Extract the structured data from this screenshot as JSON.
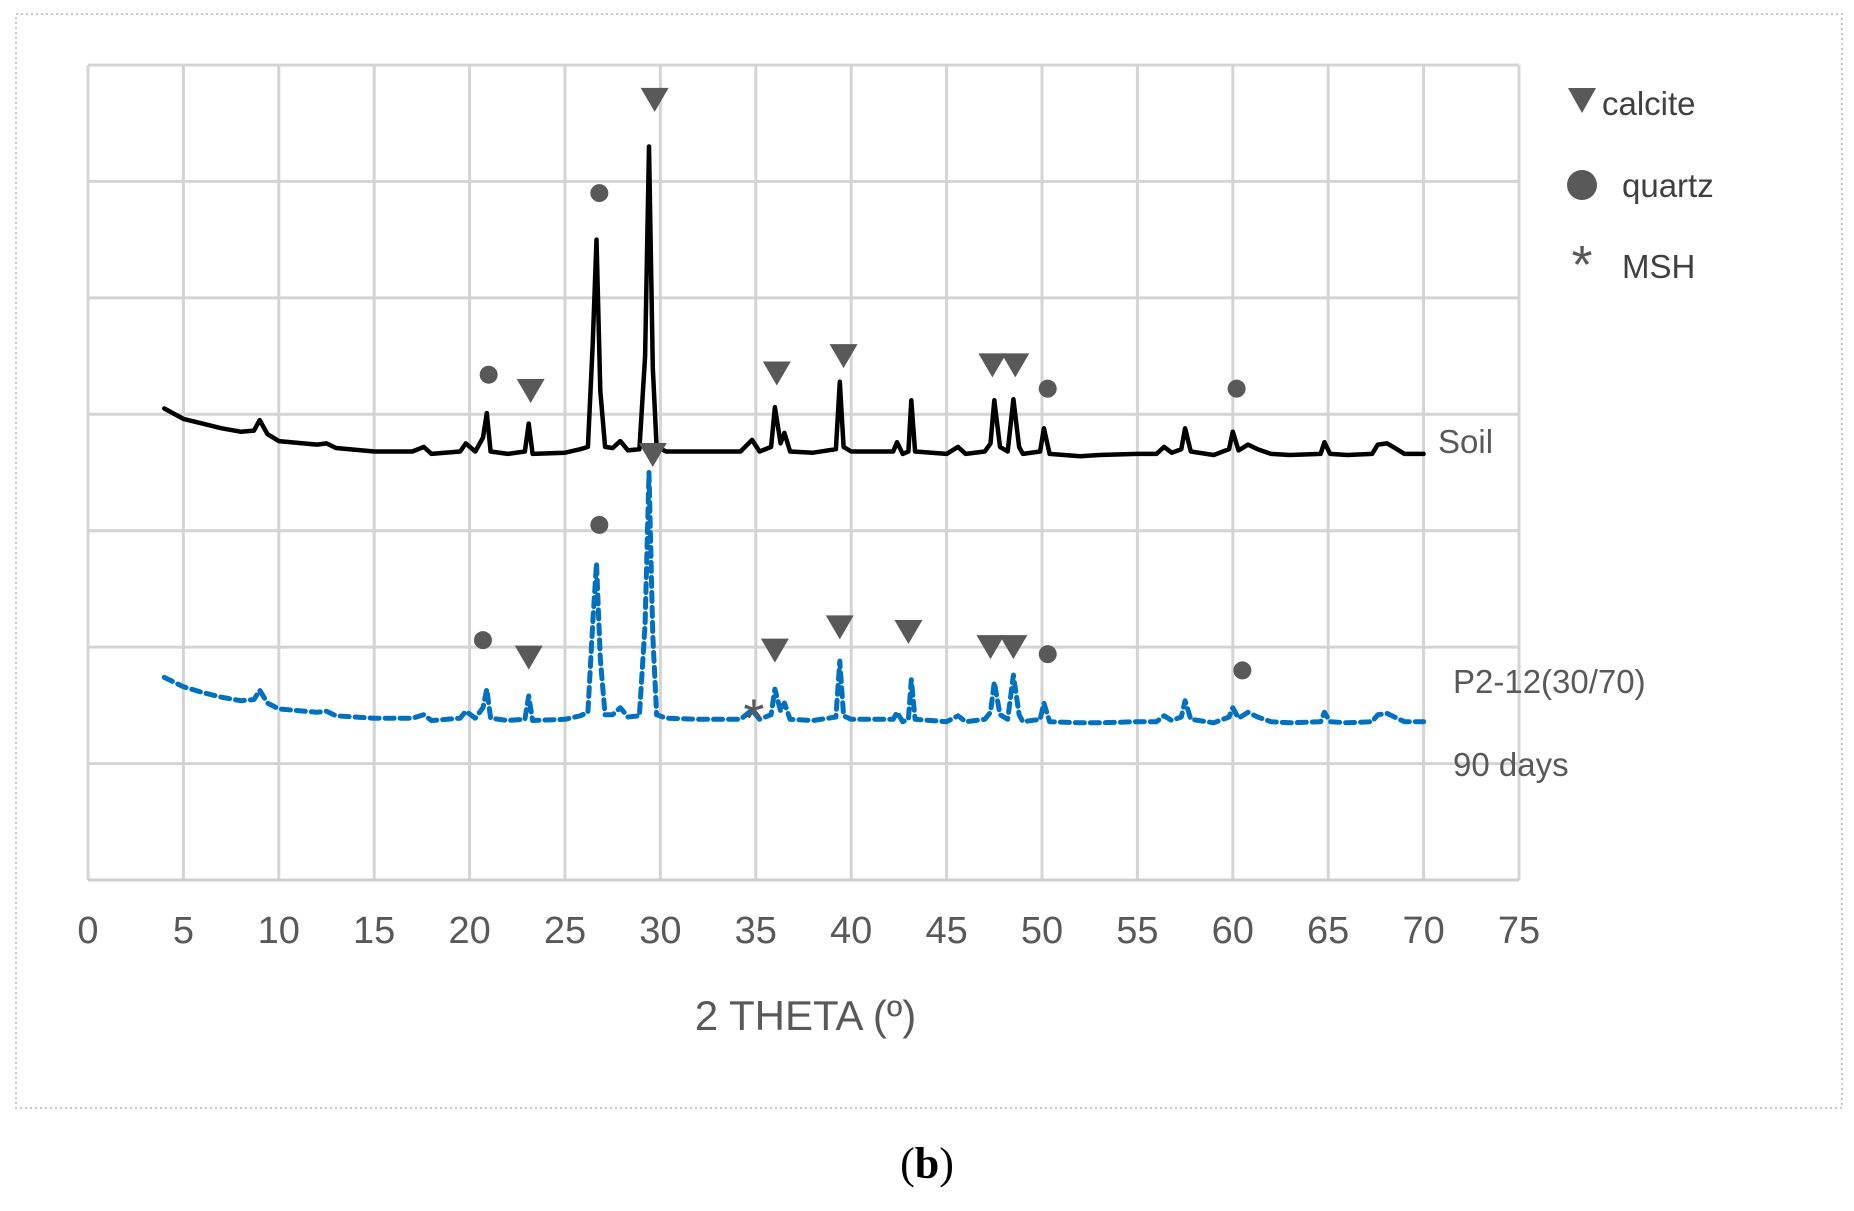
{
  "chart_data": {
    "type": "line",
    "xlabel": "2 THETA (º)",
    "ylabel": "",
    "xlim": [
      0,
      75
    ],
    "ylim": [
      0,
      7
    ],
    "x_ticks": [
      "0",
      "5",
      "10",
      "15",
      "20",
      "25",
      "30",
      "35",
      "40",
      "45",
      "50",
      "55",
      "60",
      "65",
      "70",
      "75"
    ],
    "y_tick_labels_shown": false,
    "grid": true,
    "series": [
      {
        "name": "Soil",
        "color": "#000000",
        "style": "solid",
        "points": [
          [
            4,
            4.05
          ],
          [
            5,
            3.96
          ],
          [
            6,
            3.92
          ],
          [
            7,
            3.88
          ],
          [
            8,
            3.85
          ],
          [
            8.7,
            3.86
          ],
          [
            9,
            3.95
          ],
          [
            9.4,
            3.83
          ],
          [
            10,
            3.77
          ],
          [
            12,
            3.74
          ],
          [
            12.5,
            3.75
          ],
          [
            13,
            3.71
          ],
          [
            15,
            3.68
          ],
          [
            17,
            3.68
          ],
          [
            17.6,
            3.72
          ],
          [
            18,
            3.66
          ],
          [
            19.5,
            3.68
          ],
          [
            19.8,
            3.75
          ],
          [
            20.3,
            3.68
          ],
          [
            20.7,
            3.8
          ],
          [
            20.9,
            4.01
          ],
          [
            21.1,
            3.68
          ],
          [
            22,
            3.66
          ],
          [
            22.9,
            3.68
          ],
          [
            23.1,
            3.92
          ],
          [
            23.3,
            3.66
          ],
          [
            25,
            3.67
          ],
          [
            25.8,
            3.7
          ],
          [
            26.2,
            3.72
          ],
          [
            26.45,
            4.6
          ],
          [
            26.65,
            5.5
          ],
          [
            26.85,
            4.2
          ],
          [
            27.1,
            3.72
          ],
          [
            27.5,
            3.71
          ],
          [
            27.9,
            3.77
          ],
          [
            28.3,
            3.69
          ],
          [
            28.9,
            3.7
          ],
          [
            29.2,
            4.5
          ],
          [
            29.4,
            6.3
          ],
          [
            29.6,
            4.4
          ],
          [
            29.8,
            3.72
          ],
          [
            30.3,
            3.68
          ],
          [
            32,
            3.68
          ],
          [
            34.2,
            3.68
          ],
          [
            34.8,
            3.78
          ],
          [
            35.2,
            3.68
          ],
          [
            35.8,
            3.72
          ],
          [
            36,
            4.06
          ],
          [
            36.3,
            3.75
          ],
          [
            36.5,
            3.84
          ],
          [
            36.8,
            3.68
          ],
          [
            38,
            3.67
          ],
          [
            39.2,
            3.7
          ],
          [
            39.4,
            4.28
          ],
          [
            39.6,
            3.72
          ],
          [
            40,
            3.68
          ],
          [
            42.2,
            3.68
          ],
          [
            42.4,
            3.76
          ],
          [
            42.7,
            3.66
          ],
          [
            43,
            3.68
          ],
          [
            43.15,
            4.12
          ],
          [
            43.35,
            3.68
          ],
          [
            45,
            3.66
          ],
          [
            45.6,
            3.72
          ],
          [
            46,
            3.66
          ],
          [
            47,
            3.68
          ],
          [
            47.3,
            3.75
          ],
          [
            47.5,
            4.12
          ],
          [
            47.8,
            3.72
          ],
          [
            48.2,
            3.68
          ],
          [
            48.5,
            4.13
          ],
          [
            48.8,
            3.72
          ],
          [
            49,
            3.66
          ],
          [
            49.9,
            3.68
          ],
          [
            50.1,
            3.88
          ],
          [
            50.4,
            3.66
          ],
          [
            52,
            3.64
          ],
          [
            53,
            3.65
          ],
          [
            55,
            3.66
          ],
          [
            56,
            3.66
          ],
          [
            56.4,
            3.72
          ],
          [
            56.8,
            3.67
          ],
          [
            57.3,
            3.7
          ],
          [
            57.5,
            3.88
          ],
          [
            57.8,
            3.68
          ],
          [
            59,
            3.65
          ],
          [
            59.8,
            3.7
          ],
          [
            60,
            3.85
          ],
          [
            60.3,
            3.69
          ],
          [
            60.8,
            3.74
          ],
          [
            61.3,
            3.7
          ],
          [
            62,
            3.66
          ],
          [
            63,
            3.65
          ],
          [
            64.6,
            3.66
          ],
          [
            64.8,
            3.76
          ],
          [
            65.1,
            3.66
          ],
          [
            66,
            3.65
          ],
          [
            67.3,
            3.66
          ],
          [
            67.6,
            3.74
          ],
          [
            68.1,
            3.75
          ],
          [
            68.6,
            3.7
          ],
          [
            69,
            3.66
          ],
          [
            70,
            3.66
          ]
        ]
      },
      {
        "name": "P2-12(30/70) 90 days",
        "color": "#0070c0",
        "style": "dashed",
        "points": [
          [
            4,
            1.74
          ],
          [
            5,
            1.66
          ],
          [
            6,
            1.61
          ],
          [
            7,
            1.57
          ],
          [
            8,
            1.54
          ],
          [
            8.7,
            1.55
          ],
          [
            9,
            1.63
          ],
          [
            9.4,
            1.52
          ],
          [
            10,
            1.47
          ],
          [
            12,
            1.44
          ],
          [
            12.5,
            1.45
          ],
          [
            13,
            1.41
          ],
          [
            15,
            1.39
          ],
          [
            17,
            1.39
          ],
          [
            17.6,
            1.42
          ],
          [
            18,
            1.37
          ],
          [
            19.5,
            1.39
          ],
          [
            19.8,
            1.45
          ],
          [
            20.3,
            1.39
          ],
          [
            20.7,
            1.48
          ],
          [
            20.9,
            1.64
          ],
          [
            21.1,
            1.39
          ],
          [
            22,
            1.37
          ],
          [
            22.9,
            1.38
          ],
          [
            23.1,
            1.58
          ],
          [
            23.3,
            1.37
          ],
          [
            25,
            1.38
          ],
          [
            25.8,
            1.41
          ],
          [
            26.2,
            1.44
          ],
          [
            26.45,
            2.2
          ],
          [
            26.65,
            2.72
          ],
          [
            26.85,
            1.9
          ],
          [
            27.1,
            1.42
          ],
          [
            27.5,
            1.42
          ],
          [
            27.9,
            1.48
          ],
          [
            28.3,
            1.4
          ],
          [
            28.9,
            1.41
          ],
          [
            29.2,
            2.2
          ],
          [
            29.4,
            3.5
          ],
          [
            29.6,
            2.1
          ],
          [
            29.8,
            1.42
          ],
          [
            30.3,
            1.39
          ],
          [
            32,
            1.38
          ],
          [
            34.2,
            1.38
          ],
          [
            34.8,
            1.46
          ],
          [
            35.2,
            1.38
          ],
          [
            35.8,
            1.42
          ],
          [
            36,
            1.64
          ],
          [
            36.3,
            1.45
          ],
          [
            36.5,
            1.52
          ],
          [
            36.8,
            1.38
          ],
          [
            38,
            1.37
          ],
          [
            39.2,
            1.4
          ],
          [
            39.4,
            1.88
          ],
          [
            39.6,
            1.41
          ],
          [
            40,
            1.38
          ],
          [
            42.2,
            1.38
          ],
          [
            42.4,
            1.44
          ],
          [
            42.7,
            1.36
          ],
          [
            43,
            1.38
          ],
          [
            43.15,
            1.72
          ],
          [
            43.35,
            1.38
          ],
          [
            45,
            1.36
          ],
          [
            45.6,
            1.41
          ],
          [
            46,
            1.36
          ],
          [
            47,
            1.38
          ],
          [
            47.3,
            1.44
          ],
          [
            47.5,
            1.7
          ],
          [
            47.8,
            1.42
          ],
          [
            48.2,
            1.38
          ],
          [
            48.5,
            1.76
          ],
          [
            48.8,
            1.42
          ],
          [
            49,
            1.36
          ],
          [
            49.9,
            1.38
          ],
          [
            50.1,
            1.52
          ],
          [
            50.4,
            1.36
          ],
          [
            52,
            1.35
          ],
          [
            53,
            1.35
          ],
          [
            55,
            1.36
          ],
          [
            56,
            1.36
          ],
          [
            56.4,
            1.41
          ],
          [
            56.8,
            1.37
          ],
          [
            57.3,
            1.4
          ],
          [
            57.5,
            1.54
          ],
          [
            57.8,
            1.38
          ],
          [
            59,
            1.35
          ],
          [
            59.8,
            1.4
          ],
          [
            60,
            1.48
          ],
          [
            60.3,
            1.39
          ],
          [
            60.8,
            1.44
          ],
          [
            61.3,
            1.4
          ],
          [
            62,
            1.36
          ],
          [
            63,
            1.35
          ],
          [
            64.6,
            1.36
          ],
          [
            64.8,
            1.44
          ],
          [
            65.1,
            1.36
          ],
          [
            66,
            1.35
          ],
          [
            67.3,
            1.36
          ],
          [
            67.6,
            1.42
          ],
          [
            68.1,
            1.43
          ],
          [
            68.6,
            1.39
          ],
          [
            69,
            1.36
          ],
          [
            70,
            1.36
          ]
        ]
      }
    ],
    "series_labels": {
      "soil": "Soil",
      "p2_line1": "P2-12(30/70)",
      "p2_line2": "90 days"
    },
    "peak_markers": [
      {
        "symbol": "triangle",
        "x": 29.7,
        "y": 6.7
      },
      {
        "symbol": "circle",
        "x": 26.8,
        "y": 5.9
      },
      {
        "symbol": "circle",
        "x": 21.0,
        "y": 4.34
      },
      {
        "symbol": "triangle",
        "x": 23.2,
        "y": 4.2
      },
      {
        "symbol": "triangle",
        "x": 36.1,
        "y": 4.35
      },
      {
        "symbol": "triangle",
        "x": 39.6,
        "y": 4.5
      },
      {
        "symbol": "triangle",
        "x": 47.4,
        "y": 4.42
      },
      {
        "symbol": "triangle",
        "x": 48.6,
        "y": 4.42
      },
      {
        "symbol": "circle",
        "x": 50.3,
        "y": 4.22
      },
      {
        "symbol": "circle",
        "x": 60.2,
        "y": 4.22
      },
      {
        "symbol": "triangle",
        "x": 29.6,
        "y": 3.65
      },
      {
        "symbol": "circle",
        "x": 26.8,
        "y": 3.05
      },
      {
        "symbol": "circle",
        "x": 20.7,
        "y": 2.06
      },
      {
        "symbol": "triangle",
        "x": 23.1,
        "y": 1.91
      },
      {
        "symbol": "triangle",
        "x": 36.0,
        "y": 1.97
      },
      {
        "symbol": "triangle",
        "x": 39.4,
        "y": 2.17
      },
      {
        "symbol": "triangle",
        "x": 43.0,
        "y": 2.13
      },
      {
        "symbol": "triangle",
        "x": 47.3,
        "y": 2.0
      },
      {
        "symbol": "triangle",
        "x": 48.5,
        "y": 2.0
      },
      {
        "symbol": "circle",
        "x": 50.3,
        "y": 1.94
      },
      {
        "symbol": "circle",
        "x": 60.5,
        "y": 1.8
      },
      {
        "symbol": "star",
        "x": 34.9,
        "y": 1.42
      }
    ],
    "legend": {
      "placement": "right",
      "entries": [
        {
          "symbol": "triangle",
          "label": "calcite"
        },
        {
          "symbol": "circle",
          "label": "quartz"
        },
        {
          "symbol": "star",
          "label": "MSH"
        }
      ]
    }
  },
  "caption": {
    "open": "(",
    "letter": "b",
    "close": ")"
  },
  "colors": {
    "soil": "#000000",
    "p2": "#0070c0",
    "marker": "#595959",
    "grid": "#d4d4d4"
  }
}
